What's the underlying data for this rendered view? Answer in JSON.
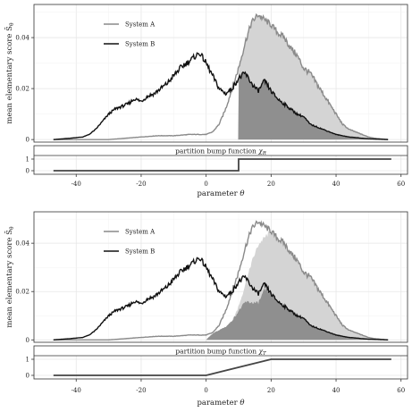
{
  "chart_data": [
    {
      "type": "area",
      "ylabel": "mean elementary score $\\bar S_\\theta$",
      "ylabel_text": "mean elementary score S̄",
      "ylabel_sub": "θ",
      "xlabel_text": "parameter ",
      "xlabel_sym": "θ",
      "xlim": [
        -53,
        62
      ],
      "ylim": [
        -0.001,
        0.053
      ],
      "yticks": [
        0,
        0.02,
        0.04
      ],
      "ytick_labels": [
        "0",
        "0.02",
        "0.04"
      ],
      "xticks": [
        -40,
        -20,
        0,
        20,
        40,
        60
      ],
      "xtick_labels": [
        "-40",
        "-20",
        "0",
        "20",
        "40",
        "60"
      ],
      "grid": true,
      "legend_position": "top-left",
      "series": [
        {
          "name": "System A",
          "color": "#8a8a8a",
          "x": [
            -47,
            -30,
            -20,
            -15,
            -10,
            -5,
            0,
            2,
            4,
            6,
            8,
            10,
            12,
            14,
            16,
            18,
            20,
            22,
            24,
            26,
            28,
            30,
            32,
            34,
            36,
            38,
            40,
            42,
            44,
            46,
            48,
            50,
            52,
            56
          ],
          "values": [
            0,
            0,
            0.001,
            0.0015,
            0.0015,
            0.002,
            0.002,
            0.003,
            0.006,
            0.012,
            0.02,
            0.028,
            0.038,
            0.046,
            0.049,
            0.047,
            0.045,
            0.042,
            0.04,
            0.036,
            0.033,
            0.028,
            0.026,
            0.022,
            0.018,
            0.014,
            0.01,
            0.006,
            0.004,
            0.003,
            0.002,
            0.001,
            0.0005,
            0
          ]
        },
        {
          "name": "System B",
          "color": "#111111",
          "x": [
            -47,
            -42,
            -38,
            -36,
            -34,
            -32,
            -30,
            -28,
            -26,
            -24,
            -22,
            -20,
            -18,
            -16,
            -14,
            -12,
            -10,
            -8,
            -6,
            -4,
            -2,
            0,
            2,
            4,
            6,
            8,
            10,
            12,
            14,
            16,
            18,
            20,
            22,
            24,
            26,
            28,
            30,
            32,
            34,
            36,
            38,
            40,
            42,
            44,
            46,
            48,
            50,
            52,
            56
          ],
          "values": [
            0,
            0.0005,
            0.001,
            0.002,
            0.004,
            0.007,
            0.01,
            0.012,
            0.013,
            0.014,
            0.016,
            0.015,
            0.017,
            0.018,
            0.02,
            0.022,
            0.025,
            0.028,
            0.03,
            0.032,
            0.034,
            0.03,
            0.025,
            0.02,
            0.018,
            0.02,
            0.024,
            0.026,
            0.022,
            0.019,
            0.023,
            0.019,
            0.016,
            0.014,
            0.012,
            0.01,
            0.009,
            0.006,
            0.005,
            0.004,
            0.003,
            0.002,
            0.0015,
            0.001,
            0.0008,
            0.0005,
            0.0003,
            0.0002,
            0
          ]
        }
      ],
      "shading": {
        "light_fill": "#d4d4d4",
        "dark_fill": "#8f8f8f",
        "description": "chi-weighted difference; light = A weighted, dark = B weighted"
      },
      "inset": {
        "label_text": "partition bump function ",
        "label_sym": "χ",
        "label_sub": "R",
        "yticks": [
          0,
          1
        ],
        "ytick_labels": [
          "0",
          "1"
        ],
        "x": [
          -47,
          10,
          10,
          57
        ],
        "values": [
          0,
          0,
          1,
          1
        ]
      }
    },
    {
      "type": "area",
      "ylabel": "mean elementary score $\\bar S_\\theta$",
      "ylabel_text": "mean elementary score S̄",
      "ylabel_sub": "θ",
      "xlabel_text": "parameter ",
      "xlabel_sym": "θ",
      "xlim": [
        -53,
        62
      ],
      "ylim": [
        -0.001,
        0.053
      ],
      "yticks": [
        0,
        0.02,
        0.04
      ],
      "ytick_labels": [
        "0",
        "0.02",
        "0.04"
      ],
      "xticks": [
        -40,
        -20,
        0,
        20,
        40,
        60
      ],
      "xtick_labels": [
        "-40",
        "-20",
        "0",
        "20",
        "40",
        "60"
      ],
      "grid": true,
      "legend_position": "top-left",
      "series": [
        {
          "name": "System A",
          "color": "#8a8a8a",
          "x": [
            -47,
            -30,
            -20,
            -15,
            -10,
            -5,
            0,
            2,
            4,
            6,
            8,
            10,
            12,
            14,
            16,
            18,
            20,
            22,
            24,
            26,
            28,
            30,
            32,
            34,
            36,
            38,
            40,
            42,
            44,
            46,
            48,
            50,
            52,
            56
          ],
          "values": [
            0,
            0,
            0.001,
            0.0015,
            0.0015,
            0.002,
            0.002,
            0.003,
            0.006,
            0.012,
            0.02,
            0.028,
            0.038,
            0.046,
            0.049,
            0.047,
            0.045,
            0.042,
            0.04,
            0.036,
            0.033,
            0.028,
            0.026,
            0.022,
            0.018,
            0.014,
            0.01,
            0.006,
            0.004,
            0.003,
            0.002,
            0.001,
            0.0005,
            0
          ]
        },
        {
          "name": "System B",
          "color": "#111111",
          "x": [
            -47,
            -42,
            -38,
            -36,
            -34,
            -32,
            -30,
            -28,
            -26,
            -24,
            -22,
            -20,
            -18,
            -16,
            -14,
            -12,
            -10,
            -8,
            -6,
            -4,
            -2,
            0,
            2,
            4,
            6,
            8,
            10,
            12,
            14,
            16,
            18,
            20,
            22,
            24,
            26,
            28,
            30,
            32,
            34,
            36,
            38,
            40,
            42,
            44,
            46,
            48,
            50,
            52,
            56
          ],
          "values": [
            0,
            0.0005,
            0.001,
            0.002,
            0.004,
            0.007,
            0.01,
            0.012,
            0.013,
            0.014,
            0.016,
            0.015,
            0.017,
            0.018,
            0.02,
            0.022,
            0.025,
            0.028,
            0.03,
            0.032,
            0.034,
            0.03,
            0.025,
            0.02,
            0.018,
            0.02,
            0.024,
            0.026,
            0.022,
            0.019,
            0.023,
            0.019,
            0.016,
            0.014,
            0.012,
            0.01,
            0.009,
            0.006,
            0.005,
            0.004,
            0.003,
            0.002,
            0.0015,
            0.001,
            0.0008,
            0.0005,
            0.0003,
            0.0002,
            0
          ]
        }
      ],
      "shading": {
        "light_fill": "#d4d4d4",
        "dark_fill": "#8f8f8f",
        "description": "chi-weighted difference; light = A weighted, dark = B weighted"
      },
      "inset": {
        "label_text": "partition bump function ",
        "label_sym": "χ",
        "label_sub": "T",
        "yticks": [
          0,
          1
        ],
        "ytick_labels": [
          "0",
          "1"
        ],
        "x": [
          -47,
          0,
          20,
          57
        ],
        "values": [
          0,
          0,
          1,
          1
        ]
      }
    }
  ]
}
